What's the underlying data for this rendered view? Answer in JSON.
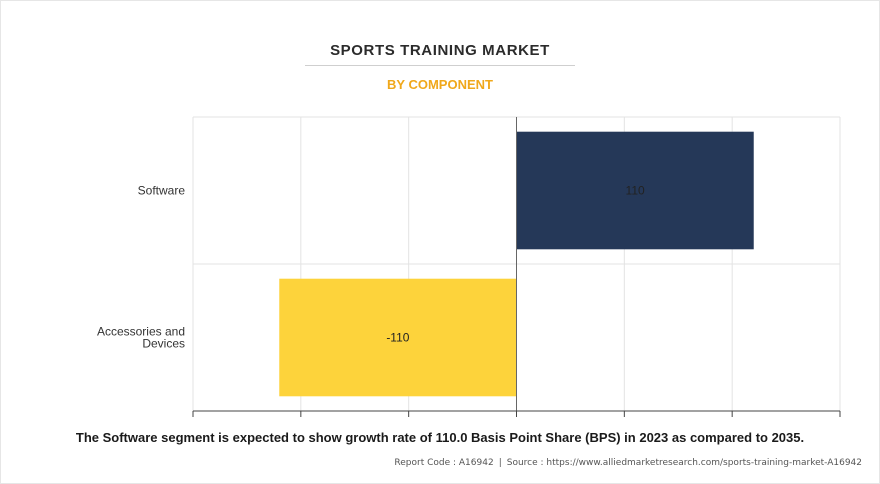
{
  "header": {
    "title": "SPORTS TRAINING MARKET",
    "subtitle": "BY COMPONENT"
  },
  "colors": {
    "accent": "#f0a81b",
    "software_bar": "#253858",
    "accessories_bar": "#fdd33b"
  },
  "chart_data": {
    "type": "bar",
    "orientation": "horizontal",
    "categories": [
      "Software",
      "Accessories and Devices"
    ],
    "values": [
      110,
      -110
    ],
    "data_labels": [
      "110",
      "-110"
    ],
    "xlim": [
      -150,
      150
    ],
    "grid": true,
    "legend": "none"
  },
  "footer": {
    "caption": "The Software segment is expected to show growth rate of 110.0 Basis Point Share (BPS) in 2023 as compared to 2035.",
    "report_code": "Report Code : A16942",
    "source": "Source : https://www.alliedmarketresearch.com/sports-training-market-A16942"
  }
}
